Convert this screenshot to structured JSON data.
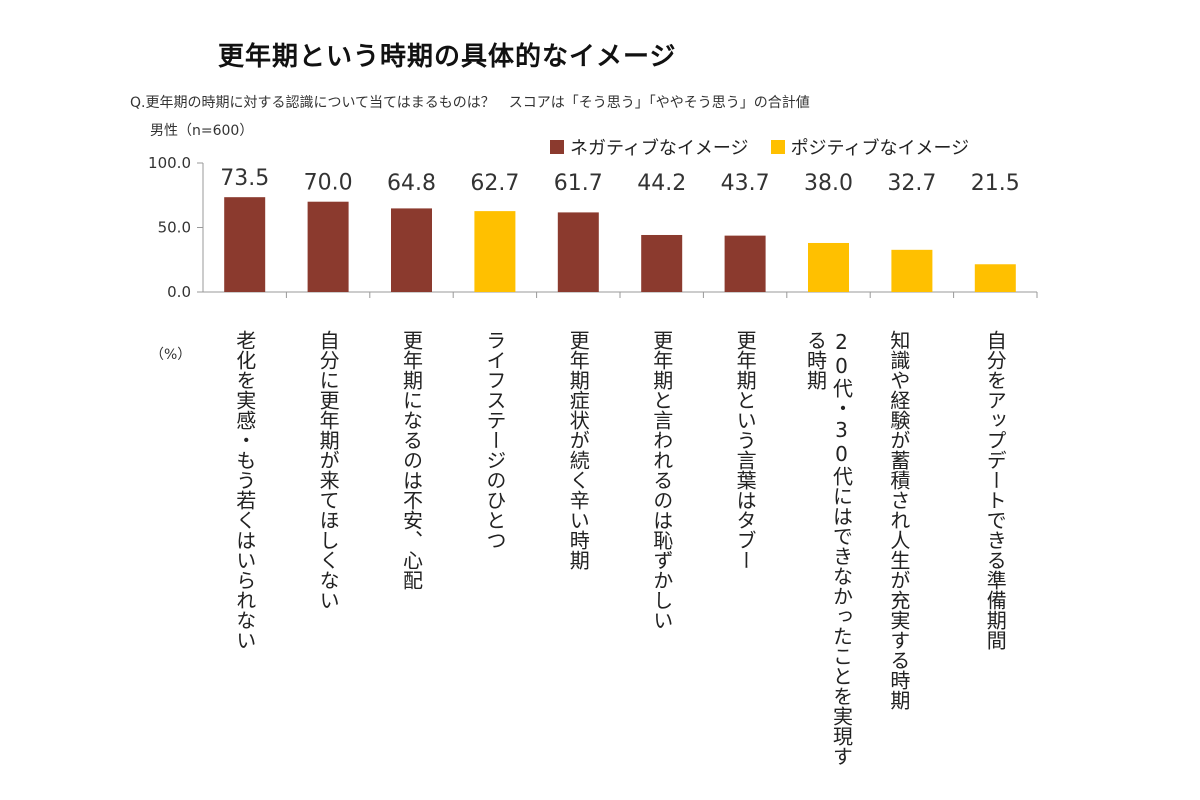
{
  "title": "更年期という時期の具体的なイメージ",
  "question": "Q.更年期の時期に対する認識について当てはまるものは？　スコアは「そう思う」「ややそう思う」の合計値",
  "sample": "男性（n=600）",
  "unit": "（%）",
  "colors": {
    "negative": "#8B3A2E",
    "positive": "#FFC000",
    "axis": "#999999"
  },
  "legend": [
    {
      "label": "ネガティブなイメージ",
      "color": "#8B3A2E"
    },
    {
      "label": "ポジティブなイメージ",
      "color": "#FFC000"
    }
  ],
  "chart_data": {
    "type": "bar",
    "title": "更年期という時期の具体的なイメージ",
    "ylim": [
      0,
      100
    ],
    "yticks": [
      "0.0",
      "50.0",
      "100.0"
    ],
    "categories": [
      "老化を実感・もう若くはいられない",
      "自分に更年期が来てほしくない",
      "更年期になるのは不安、心配",
      "ライフステージのひとつ",
      "更年期症状が続く辛い時期",
      "更年期と言われるのは恥ずかしい",
      "更年期という言葉はタブー",
      "20代・30代にはできなかったことを実現する時期",
      "知識や経験が蓄積され人生が充実する時期",
      "自分をアップデートできる準備期間"
    ],
    "values": [
      73.5,
      70.0,
      64.8,
      62.7,
      61.7,
      44.2,
      43.7,
      38.0,
      32.7,
      21.5
    ],
    "value_labels": [
      "73.5",
      "70.0",
      "64.8",
      "62.7",
      "61.7",
      "44.2",
      "43.7",
      "38.0",
      "32.7",
      "21.5"
    ],
    "groups": [
      "negative",
      "negative",
      "negative",
      "positive",
      "negative",
      "negative",
      "negative",
      "positive",
      "positive",
      "positive"
    ],
    "grid": false,
    "legend_position": "top-right"
  }
}
